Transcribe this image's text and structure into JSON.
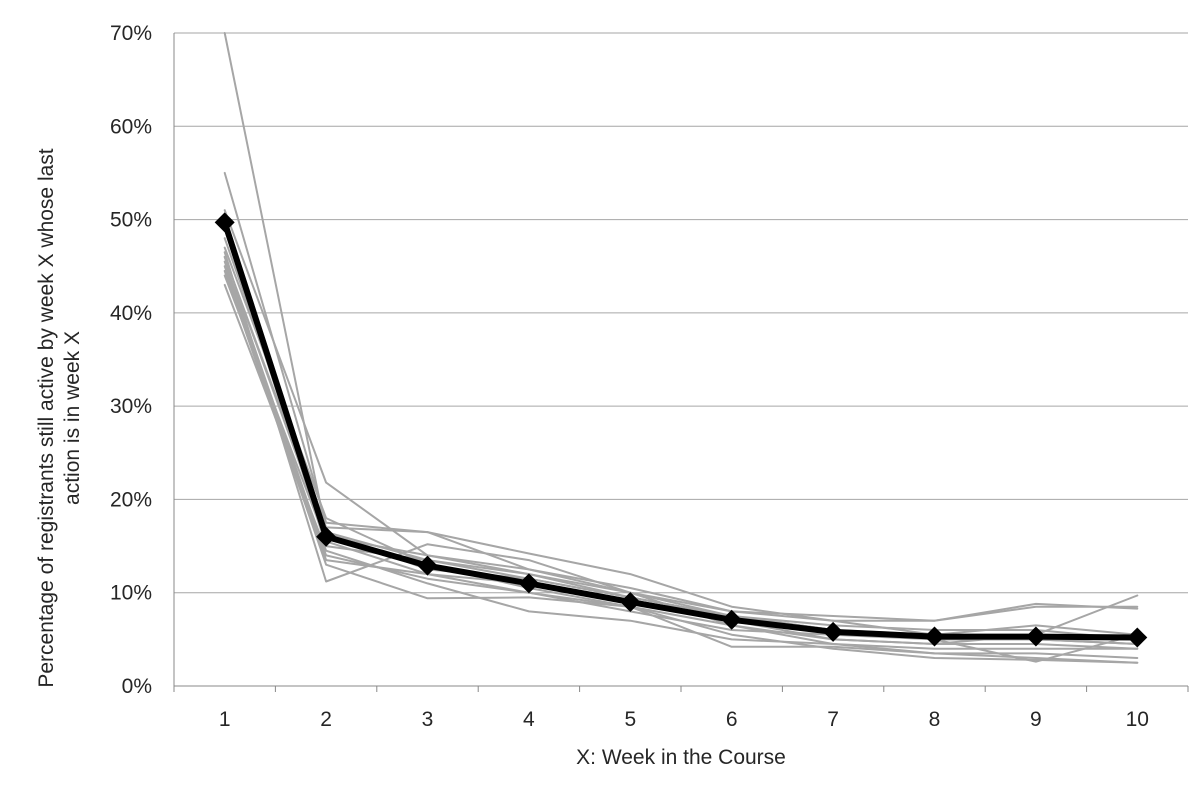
{
  "chart_data": {
    "type": "line",
    "title": "",
    "xlabel": "X: Week in the Course",
    "ylabel_lines": [
      "Percentage of registrants still active by week X whose last",
      "action is in week X"
    ],
    "x": [
      1,
      2,
      3,
      4,
      5,
      6,
      7,
      8,
      9,
      10
    ],
    "x_tick_labels": [
      "1",
      "2",
      "3",
      "4",
      "5",
      "6",
      "7",
      "8",
      "9",
      "10"
    ],
    "y_tick_values": [
      0,
      10,
      20,
      30,
      40,
      50,
      60,
      70
    ],
    "y_tick_labels": [
      "0%",
      "10%",
      "20%",
      "30%",
      "40%",
      "50%",
      "60%",
      "70%"
    ],
    "ylim": [
      0,
      70
    ],
    "y_unit": "%",
    "grid": "horizontal",
    "legend": "none",
    "colors": {
      "background_series": "#a6a6a6",
      "average_series": "#000000",
      "grid": "#a6a6a6",
      "axis": "#888888",
      "text": "#262626"
    },
    "series": [
      {
        "role": "average",
        "marker": "diamond",
        "values": [
          49.7,
          16.0,
          12.9,
          11.0,
          9.0,
          7.1,
          5.8,
          5.3,
          5.3,
          5.2
        ]
      },
      {
        "role": "course",
        "values": [
          70.0,
          16.5,
          12.5,
          11.5,
          9.5,
          7.5,
          6.0,
          5.0,
          5.0,
          5.0
        ]
      },
      {
        "role": "course",
        "values": [
          55.0,
          17.5,
          16.5,
          12.5,
          10.0,
          8.0,
          7.5,
          7.0,
          8.5,
          8.5
        ]
      },
      {
        "role": "course",
        "values": [
          51.0,
          21.8,
          14.0,
          12.0,
          9.5,
          7.5,
          6.0,
          5.5,
          5.0,
          4.5
        ]
      },
      {
        "role": "course",
        "values": [
          49.0,
          15.0,
          13.5,
          11.5,
          9.5,
          7.5,
          6.5,
          6.0,
          6.0,
          5.0
        ]
      },
      {
        "role": "course",
        "values": [
          48.0,
          17.0,
          16.5,
          14.2,
          12.0,
          8.5,
          7.0,
          7.0,
          8.8,
          8.3
        ]
      },
      {
        "role": "course",
        "values": [
          47.0,
          18.0,
          13.0,
          10.5,
          8.5,
          6.5,
          5.0,
          4.5,
          5.5,
          9.7
        ]
      },
      {
        "role": "course",
        "values": [
          46.5,
          11.2,
          15.2,
          13.5,
          10.0,
          6.5,
          4.5,
          4.0,
          4.0,
          4.0
        ]
      },
      {
        "role": "course",
        "values": [
          46.0,
          16.0,
          14.0,
          12.5,
          10.5,
          8.0,
          7.0,
          5.5,
          6.5,
          5.5
        ]
      },
      {
        "role": "course",
        "values": [
          45.5,
          14.0,
          11.5,
          10.0,
          8.0,
          6.0,
          5.5,
          5.0,
          5.0,
          4.5
        ]
      },
      {
        "role": "course",
        "values": [
          45.0,
          13.5,
          12.0,
          11.0,
          9.0,
          7.0,
          5.0,
          4.5,
          4.5,
          4.0
        ]
      },
      {
        "role": "course",
        "values": [
          44.5,
          13.0,
          9.4,
          9.5,
          8.5,
          4.2,
          4.2,
          3.5,
          3.5,
          3.0
        ]
      },
      {
        "role": "course",
        "values": [
          44.0,
          15.5,
          12.0,
          10.0,
          8.5,
          5.5,
          4.0,
          3.0,
          2.8,
          2.5
        ]
      },
      {
        "role": "course",
        "values": [
          43.0,
          14.5,
          11.0,
          8.0,
          7.0,
          5.0,
          4.5,
          3.5,
          3.0,
          2.5
        ]
      },
      {
        "role": "course",
        "values": [
          46.0,
          16.5,
          13.5,
          12.0,
          10.0,
          7.5,
          6.0,
          5.0,
          2.6,
          5.5
        ]
      }
    ]
  }
}
